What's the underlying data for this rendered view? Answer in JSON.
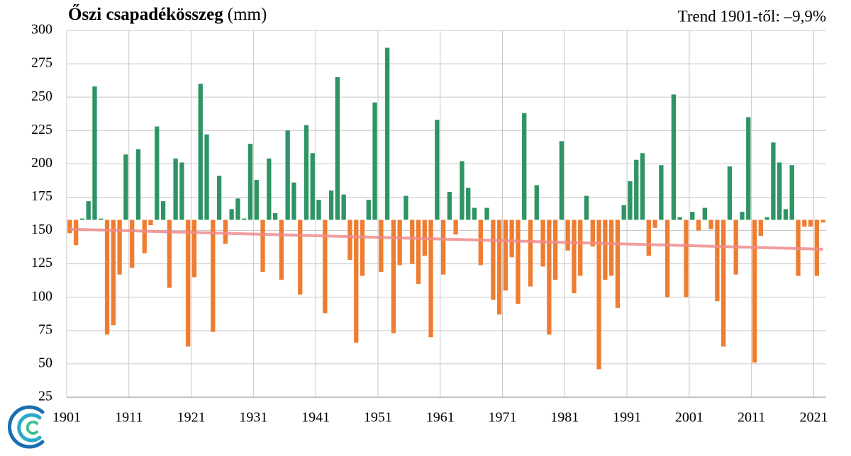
{
  "chart_data": {
    "type": "bar",
    "title": "Őszi csapadékösszeg",
    "title_unit": "(mm)",
    "annotation": "Trend 1901-től: –9,9%",
    "x": [
      1901,
      1902,
      1903,
      1904,
      1905,
      1906,
      1907,
      1908,
      1909,
      1910,
      1911,
      1912,
      1913,
      1914,
      1915,
      1916,
      1917,
      1918,
      1919,
      1920,
      1921,
      1922,
      1923,
      1924,
      1925,
      1926,
      1927,
      1928,
      1929,
      1930,
      1931,
      1932,
      1933,
      1934,
      1935,
      1936,
      1937,
      1938,
      1939,
      1940,
      1941,
      1942,
      1943,
      1944,
      1945,
      1946,
      1947,
      1948,
      1949,
      1950,
      1951,
      1952,
      1953,
      1954,
      1955,
      1956,
      1957,
      1958,
      1959,
      1960,
      1961,
      1962,
      1963,
      1964,
      1965,
      1966,
      1967,
      1968,
      1969,
      1970,
      1971,
      1972,
      1973,
      1974,
      1975,
      1976,
      1977,
      1978,
      1979,
      1980,
      1981,
      1982,
      1983,
      1984,
      1985,
      1986,
      1987,
      1988,
      1989,
      1990,
      1991,
      1992,
      1993,
      1994,
      1995,
      1996,
      1997,
      1998,
      1999,
      2000,
      2001,
      2002,
      2003,
      2004,
      2005,
      2006,
      2007,
      2008,
      2009,
      2010,
      2011,
      2012,
      2013,
      2014,
      2015,
      2016,
      2017,
      2018,
      2019,
      2020,
      2021,
      2022
    ],
    "values": [
      148,
      139,
      159,
      172,
      258,
      159,
      72,
      79,
      117,
      207,
      122,
      211,
      133,
      154,
      228,
      172,
      107,
      204,
      201,
      63,
      115,
      260,
      222,
      74,
      191,
      140,
      166,
      174,
      159,
      215,
      188,
      119,
      204,
      163,
      113,
      225,
      186,
      102,
      229,
      208,
      173,
      88,
      180,
      265,
      177,
      128,
      66,
      116,
      173,
      246,
      119,
      287,
      73,
      124,
      176,
      125,
      110,
      131,
      70,
      233,
      117,
      179,
      147,
      202,
      182,
      167,
      124,
      167,
      98,
      87,
      105,
      130,
      95,
      238,
      108,
      184,
      123,
      72,
      113,
      217,
      135,
      103,
      116,
      176,
      138,
      46,
      113,
      116,
      92,
      169,
      187,
      203,
      208,
      131,
      152,
      199,
      100,
      252,
      160,
      100,
      164,
      150,
      167,
      151,
      97,
      63,
      198,
      117,
      164,
      235,
      51,
      146,
      160,
      216,
      201,
      166,
      199,
      116,
      153,
      153,
      116,
      156
    ],
    "bar_origin": 158,
    "colors": {
      "above": "#2e9464",
      "below": "#ef7d31"
    },
    "trend": {
      "x": [
        1901,
        2022
      ],
      "values": [
        151,
        136
      ],
      "color": "#f08c8c"
    },
    "xlim": [
      1900.5,
      2022.5
    ],
    "xticks": [
      1901,
      1911,
      1921,
      1931,
      1941,
      1951,
      1961,
      1971,
      1981,
      1991,
      2001,
      2011,
      2021
    ],
    "ylim": [
      25,
      300
    ],
    "yticks": [
      25,
      50,
      75,
      100,
      125,
      150,
      175,
      200,
      225,
      250,
      275,
      300
    ],
    "grid": true
  }
}
